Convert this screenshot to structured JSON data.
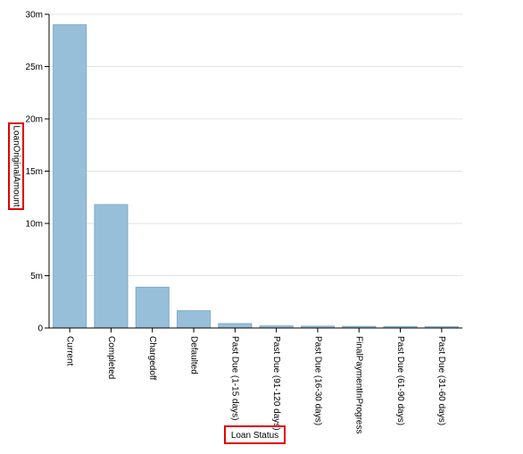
{
  "chart_data": {
    "type": "bar",
    "title": "",
    "xlabel": "Loan Status",
    "ylabel": "LoanOriginalAmount",
    "ylim": [
      0,
      30000000
    ],
    "y_ticks": [
      0,
      5000000,
      10000000,
      15000000,
      20000000,
      25000000,
      30000000
    ],
    "y_tick_labels": [
      "0",
      "5m",
      "10m",
      "15m",
      "20m",
      "25m",
      "30m"
    ],
    "grid": true,
    "categories": [
      "Current",
      "Completed",
      "Chargedoff",
      "Defaulted",
      "Past Due (1-15 days)",
      "Past Due (91-120 days)",
      "Past Due (16-30 days)",
      "FinalPaymentInProgress",
      "Past Due (61-90 days)",
      "Past Due (31-60 days)"
    ],
    "values": [
      29000000,
      11800000,
      3900000,
      1650000,
      420000,
      200000,
      170000,
      150000,
      140000,
      120000
    ],
    "bar_color": "#98bfda",
    "highlight_color": "#e00000"
  }
}
